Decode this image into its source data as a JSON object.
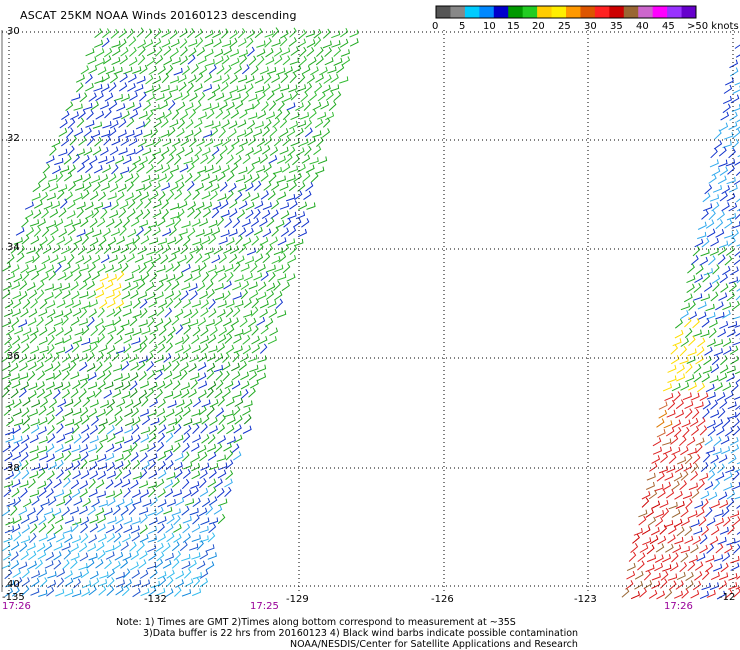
{
  "title": "ASCAT 25KM NOAA Winds 20160123 descending",
  "legend": {
    "colors": [
      "#555555",
      "#888888",
      "#00ccff",
      "#0088ff",
      "#0000cc",
      "#009900",
      "#22cc22",
      "#ffcc00",
      "#ffee00",
      "#ff9900",
      "#dd5500",
      "#ff2222",
      "#cc0000",
      "#996633",
      "#cc66cc",
      "#ff00ff",
      "#9933ff",
      "#6600cc"
    ],
    "ticks": [
      "0",
      "5",
      "10",
      "15",
      "20",
      "25",
      "30",
      "35",
      "40",
      "45"
    ],
    "unit": ">50 knots"
  },
  "y_ticks": [
    "30",
    "32",
    "34",
    "36",
    "38",
    "40"
  ],
  "x_ticks": [
    "-135",
    "-132",
    "-129",
    "-126",
    "-123",
    "-12"
  ],
  "times": [
    "17:26",
    "17:25",
    "17:26"
  ],
  "notes": [
    "Note: 1) Times are GMT 2)Times along bottom correspond to measurement at ~35S",
    "3)Data buffer is 22 hrs from 20160123 4) Black wind barbs indicate possible contamination",
    "NOAA/NESDIS/Center for Satellite Applications and Research"
  ]
}
